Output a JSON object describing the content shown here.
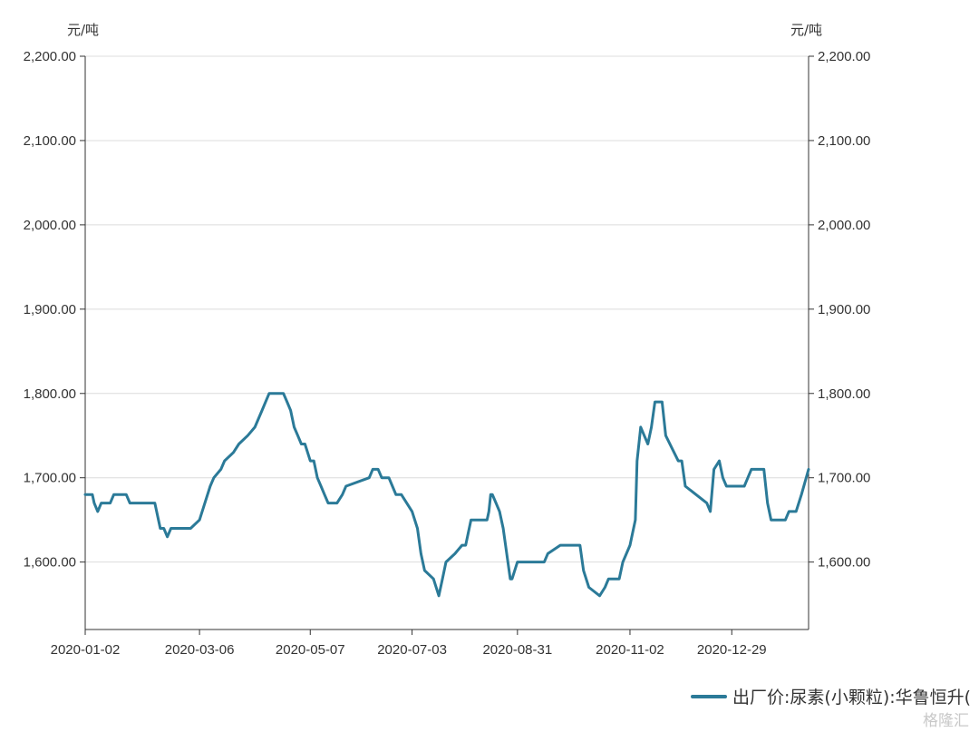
{
  "chart_data": {
    "type": "line",
    "title": "",
    "ylabel_left": "元/吨",
    "ylabel_right": "元/吨",
    "ylim": [
      1520,
      2200
    ],
    "yticks": [
      1600,
      1700,
      1800,
      1900,
      2000,
      2100,
      2200
    ],
    "ytick_labels": [
      "1,600.00",
      "1,700.00",
      "1,800.00",
      "1,900.00",
      "2,000.00",
      "2,100.00",
      "2,200.00"
    ],
    "xlim": [
      "2020-01-02",
      "2021-02-10"
    ],
    "xticks": [
      "2020-01-02",
      "2020-03-06",
      "2020-05-07",
      "2020-07-03",
      "2020-08-31",
      "2020-11-02",
      "2020-12-29"
    ],
    "grid": true,
    "legend_position": "bottom-right",
    "series": [
      {
        "name": "出厂价:尿素(小颗粒):华鲁恒升(",
        "color": "#2b7a98",
        "x": [
          "2020-01-02",
          "2020-01-06",
          "2020-01-07",
          "2020-01-09",
          "2020-01-11",
          "2020-01-16",
          "2020-01-18",
          "2020-01-25",
          "2020-01-27",
          "2020-01-28",
          "2020-01-29",
          "2020-02-01",
          "2020-02-05",
          "2020-02-10",
          "2020-02-13",
          "2020-02-15",
          "2020-02-17",
          "2020-02-19",
          "2020-02-25",
          "2020-02-26",
          "2020-03-01",
          "2020-03-06",
          "2020-03-09",
          "2020-03-12",
          "2020-03-14",
          "2020-03-18",
          "2020-03-20",
          "2020-03-25",
          "2020-03-28",
          "2020-04-02",
          "2020-04-06",
          "2020-04-10",
          "2020-04-12",
          "2020-04-14",
          "2020-04-18",
          "2020-04-22",
          "2020-04-24",
          "2020-04-26",
          "2020-04-28",
          "2020-04-30",
          "2020-05-02",
          "2020-05-04",
          "2020-05-07",
          "2020-05-09",
          "2020-05-11",
          "2020-05-13",
          "2020-05-15",
          "2020-05-17",
          "2020-05-19",
          "2020-05-22",
          "2020-05-25",
          "2020-05-27",
          "2020-06-09",
          "2020-06-11",
          "2020-06-14",
          "2020-06-16",
          "2020-06-20",
          "2020-06-22",
          "2020-06-24",
          "2020-06-27",
          "2020-07-03",
          "2020-07-06",
          "2020-07-08",
          "2020-07-10",
          "2020-07-15",
          "2020-07-18",
          "2020-07-20",
          "2020-07-22",
          "2020-07-27",
          "2020-07-31",
          "2020-08-02",
          "2020-08-05",
          "2020-08-08",
          "2020-08-11",
          "2020-08-12",
          "2020-08-14",
          "2020-08-15",
          "2020-08-16",
          "2020-08-17",
          "2020-08-19",
          "2020-08-21",
          "2020-08-23",
          "2020-08-27",
          "2020-08-28",
          "2020-08-31",
          "2020-09-02",
          "2020-09-15",
          "2020-09-17",
          "2020-09-24",
          "2020-09-26",
          "2020-09-27",
          "2020-10-05",
          "2020-10-07",
          "2020-10-10",
          "2020-10-16",
          "2020-10-19",
          "2020-10-21",
          "2020-10-25",
          "2020-10-27",
          "2020-10-29",
          "2020-11-02",
          "2020-11-05",
          "2020-11-06",
          "2020-11-08",
          "2020-11-10",
          "2020-11-12",
          "2020-11-14",
          "2020-11-16",
          "2020-11-20",
          "2020-11-22",
          "2020-11-29",
          "2020-12-01",
          "2020-12-03",
          "2020-12-15",
          "2020-12-17",
          "2020-12-19",
          "2020-12-22",
          "2020-12-24",
          "2020-12-26",
          "2020-12-31",
          "2021-01-03",
          "2021-01-05",
          "2021-01-07",
          "2021-01-09",
          "2021-01-12",
          "2021-01-16",
          "2021-01-18",
          "2021-01-20",
          "2021-01-23",
          "2021-01-25",
          "2021-01-26",
          "2021-01-28",
          "2021-01-30",
          "2021-02-03",
          "2021-02-06",
          "2021-02-10"
        ],
        "y": [
          1680,
          1680,
          1670,
          1660,
          1670,
          1670,
          1680,
          1680,
          1670,
          1670,
          1670,
          1670,
          1670,
          1670,
          1640,
          1640,
          1630,
          1640,
          1640,
          1640,
          1640,
          1650,
          1670,
          1690,
          1700,
          1710,
          1720,
          1730,
          1740,
          1750,
          1760,
          1780,
          1790,
          1800,
          1800,
          1800,
          1790,
          1780,
          1760,
          1750,
          1740,
          1740,
          1720,
          1720,
          1700,
          1690,
          1680,
          1670,
          1670,
          1670,
          1680,
          1690,
          1700,
          1710,
          1710,
          1700,
          1700,
          1690,
          1680,
          1680,
          1660,
          1640,
          1610,
          1590,
          1580,
          1560,
          1580,
          1600,
          1610,
          1620,
          1620,
          1650,
          1650,
          1650,
          1650,
          1650,
          1660,
          1680,
          1680,
          1670,
          1660,
          1640,
          1580,
          1580,
          1600,
          1600,
          1600,
          1610,
          1620,
          1620,
          1620,
          1620,
          1590,
          1570,
          1560,
          1570,
          1580,
          1580,
          1580,
          1600,
          1620,
          1650,
          1720,
          1760,
          1750,
          1740,
          1760,
          1790,
          1790,
          1750,
          1720,
          1720,
          1690,
          1670,
          1660,
          1710,
          1720,
          1700,
          1690,
          1690,
          1690,
          1690,
          1700,
          1710,
          1710,
          1710,
          1670,
          1650,
          1650,
          1650,
          1650,
          1650,
          1660,
          1660,
          1680,
          1710
        ]
      }
    ]
  },
  "watermark": "格隆汇"
}
